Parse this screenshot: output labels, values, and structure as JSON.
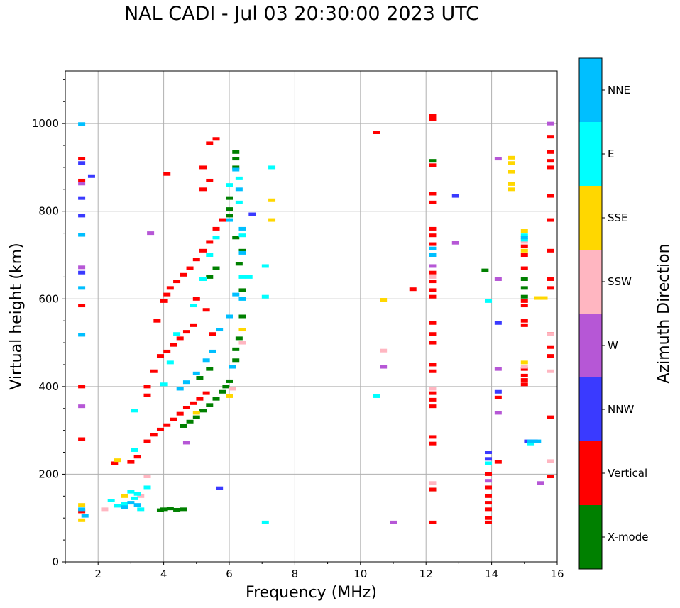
{
  "chart_data": {
    "type": "scatter",
    "title": "NAL CADI - Jul 03 20:30:00 2023 UTC",
    "xlabel": "Frequency (MHz)",
    "ylabel": "Virtual height (km)",
    "xlim": [
      1,
      16
    ],
    "ylim": [
      0,
      1120
    ],
    "xticks": [
      2,
      4,
      6,
      8,
      10,
      12,
      14,
      16
    ],
    "yticks": [
      0,
      200,
      400,
      600,
      800,
      1000
    ],
    "grid": true,
    "colorbar": {
      "label": "Azimuth Direction",
      "categories": [
        {
          "name": "X-mode",
          "color": "#008000"
        },
        {
          "name": "Vertical",
          "color": "#ff0000"
        },
        {
          "name": "NNW",
          "color": "#3a3aff"
        },
        {
          "name": "W",
          "color": "#b657d6"
        },
        {
          "name": "SSW",
          "color": "#ffb6c1"
        },
        {
          "name": "SSE",
          "color": "#ffd700"
        },
        {
          "name": "E",
          "color": "#00ffff"
        },
        {
          "name": "NNE",
          "color": "#00bfff"
        }
      ]
    },
    "series": [
      {
        "name": "X-mode",
        "points": [
          [
            4.0,
            120
          ],
          [
            4.2,
            122
          ],
          [
            4.4,
            119
          ],
          [
            4.6,
            120
          ],
          [
            3.9,
            118
          ],
          [
            4.6,
            310
          ],
          [
            4.8,
            320
          ],
          [
            5.0,
            330
          ],
          [
            5.2,
            345
          ],
          [
            5.4,
            358
          ],
          [
            5.6,
            372
          ],
          [
            5.8,
            388
          ],
          [
            5.9,
            400
          ],
          [
            6.0,
            412
          ],
          [
            6.2,
            460
          ],
          [
            6.2,
            485
          ],
          [
            6.3,
            510
          ],
          [
            6.4,
            560
          ],
          [
            6.4,
            620
          ],
          [
            6.3,
            680
          ],
          [
            6.4,
            710
          ],
          [
            6.2,
            740
          ],
          [
            6.0,
            790
          ],
          [
            6.0,
            805
          ],
          [
            6.0,
            830
          ],
          [
            6.2,
            900
          ],
          [
            6.2,
            920
          ],
          [
            6.2,
            935
          ],
          [
            5.4,
            650
          ],
          [
            5.6,
            670
          ],
          [
            5.1,
            420
          ],
          [
            5.4,
            440
          ],
          [
            12.2,
            165
          ],
          [
            12.2,
            915
          ],
          [
            13.8,
            665
          ],
          [
            15.0,
            605
          ],
          [
            15.0,
            625
          ],
          [
            15.0,
            645
          ]
        ]
      },
      {
        "name": "Vertical",
        "points": [
          [
            1.5,
            920
          ],
          [
            1.5,
            870
          ],
          [
            1.5,
            585
          ],
          [
            1.5,
            400
          ],
          [
            1.5,
            280
          ],
          [
            1.5,
            115
          ],
          [
            2.5,
            225
          ],
          [
            3.0,
            228
          ],
          [
            3.2,
            240
          ],
          [
            3.5,
            275
          ],
          [
            3.7,
            290
          ],
          [
            3.9,
            302
          ],
          [
            4.1,
            312
          ],
          [
            4.3,
            325
          ],
          [
            4.5,
            338
          ],
          [
            4.7,
            352
          ],
          [
            4.9,
            362
          ],
          [
            5.1,
            372
          ],
          [
            5.3,
            385
          ],
          [
            3.7,
            435
          ],
          [
            3.9,
            470
          ],
          [
            4.1,
            480
          ],
          [
            4.3,
            495
          ],
          [
            4.5,
            510
          ],
          [
            4.7,
            525
          ],
          [
            4.9,
            540
          ],
          [
            3.8,
            550
          ],
          [
            4.0,
            595
          ],
          [
            4.1,
            610
          ],
          [
            4.2,
            625
          ],
          [
            4.4,
            640
          ],
          [
            4.6,
            655
          ],
          [
            4.8,
            670
          ],
          [
            5.0,
            690
          ],
          [
            5.2,
            710
          ],
          [
            5.4,
            730
          ],
          [
            5.6,
            760
          ],
          [
            5.8,
            780
          ],
          [
            5.2,
            850
          ],
          [
            5.4,
            870
          ],
          [
            5.6,
            965
          ],
          [
            5.4,
            955
          ],
          [
            5.2,
            900
          ],
          [
            4.1,
            885
          ],
          [
            3.5,
            400
          ],
          [
            3.5,
            380
          ],
          [
            5.0,
            600
          ],
          [
            5.3,
            575
          ],
          [
            5.5,
            520
          ],
          [
            10.5,
            980
          ],
          [
            11.6,
            622
          ],
          [
            12.2,
            90
          ],
          [
            12.2,
            165
          ],
          [
            12.2,
            270
          ],
          [
            12.2,
            285
          ],
          [
            12.2,
            355
          ],
          [
            12.2,
            370
          ],
          [
            12.2,
            385
          ],
          [
            12.2,
            435
          ],
          [
            12.2,
            450
          ],
          [
            12.2,
            500
          ],
          [
            12.2,
            520
          ],
          [
            12.2,
            545
          ],
          [
            12.2,
            605
          ],
          [
            12.2,
            620
          ],
          [
            12.2,
            640
          ],
          [
            12.2,
            660
          ],
          [
            12.2,
            725
          ],
          [
            12.2,
            745
          ],
          [
            12.2,
            760
          ],
          [
            12.2,
            820
          ],
          [
            12.2,
            840
          ],
          [
            12.2,
            905
          ],
          [
            12.2,
            1010
          ],
          [
            12.2,
            1018
          ],
          [
            13.9,
            90
          ],
          [
            13.9,
            100
          ],
          [
            13.9,
            120
          ],
          [
            13.9,
            135
          ],
          [
            13.9,
            150
          ],
          [
            13.9,
            170
          ],
          [
            13.9,
            200
          ],
          [
            14.2,
            228
          ],
          [
            14.2,
            375
          ],
          [
            15.0,
            405
          ],
          [
            15.0,
            415
          ],
          [
            15.0,
            425
          ],
          [
            15.0,
            440
          ],
          [
            15.0,
            540
          ],
          [
            15.0,
            550
          ],
          [
            15.0,
            585
          ],
          [
            15.0,
            595
          ],
          [
            15.0,
            670
          ],
          [
            15.0,
            700
          ],
          [
            15.0,
            720
          ],
          [
            15.8,
            195
          ],
          [
            15.8,
            330
          ],
          [
            15.8,
            470
          ],
          [
            15.8,
            490
          ],
          [
            15.8,
            520
          ],
          [
            15.8,
            625
          ],
          [
            15.8,
            645
          ],
          [
            15.8,
            710
          ],
          [
            15.8,
            780
          ],
          [
            15.8,
            835
          ],
          [
            15.8,
            900
          ],
          [
            15.8,
            915
          ],
          [
            15.8,
            935
          ],
          [
            15.8,
            970
          ]
        ]
      },
      {
        "name": "NNW",
        "points": [
          [
            1.5,
            790
          ],
          [
            1.5,
            830
          ],
          [
            1.5,
            660
          ],
          [
            1.5,
            910
          ],
          [
            1.8,
            880
          ],
          [
            5.7,
            168
          ],
          [
            6.7,
            793
          ],
          [
            12.9,
            835
          ],
          [
            13.9,
            235
          ],
          [
            13.9,
            250
          ],
          [
            14.2,
            545
          ],
          [
            14.2,
            388
          ],
          [
            15.1,
            275
          ],
          [
            15.3,
            275
          ]
        ]
      },
      {
        "name": "W",
        "points": [
          [
            1.5,
            355
          ],
          [
            1.5,
            672
          ],
          [
            1.5,
            863
          ],
          [
            3.6,
            750
          ],
          [
            4.7,
            272
          ],
          [
            10.7,
            445
          ],
          [
            11.0,
            90
          ],
          [
            12.2,
            675
          ],
          [
            12.9,
            728
          ],
          [
            13.9,
            185
          ],
          [
            14.2,
            340
          ],
          [
            14.2,
            440
          ],
          [
            14.2,
            645
          ],
          [
            14.2,
            920
          ],
          [
            15.5,
            180
          ],
          [
            15.8,
            1000
          ]
        ]
      },
      {
        "name": "SSW",
        "points": [
          [
            2.2,
            120
          ],
          [
            3.3,
            150
          ],
          [
            3.5,
            195
          ],
          [
            6.1,
            395
          ],
          [
            6.4,
            500
          ],
          [
            10.7,
            482
          ],
          [
            12.2,
            180
          ],
          [
            12.2,
            395
          ],
          [
            12.2,
            650
          ],
          [
            15.0,
            445
          ],
          [
            15.0,
            730
          ],
          [
            15.8,
            230
          ],
          [
            15.8,
            435
          ],
          [
            15.8,
            520
          ]
        ]
      },
      {
        "name": "SSE",
        "points": [
          [
            1.5,
            95
          ],
          [
            1.5,
            130
          ],
          [
            2.6,
            232
          ],
          [
            2.8,
            150
          ],
          [
            5.0,
            340
          ],
          [
            6.0,
            378
          ],
          [
            6.4,
            530
          ],
          [
            7.3,
            780
          ],
          [
            7.3,
            825
          ],
          [
            10.7,
            598
          ],
          [
            14.6,
            850
          ],
          [
            14.6,
            862
          ],
          [
            14.6,
            890
          ],
          [
            14.6,
            910
          ],
          [
            14.6,
            922
          ],
          [
            15.0,
            455
          ],
          [
            15.0,
            710
          ],
          [
            15.0,
            755
          ],
          [
            15.4,
            602
          ],
          [
            15.6,
            602
          ]
        ]
      },
      {
        "name": "E",
        "points": [
          [
            2.4,
            140
          ],
          [
            2.6,
            128
          ],
          [
            2.8,
            132
          ],
          [
            3.0,
            160
          ],
          [
            3.1,
            145
          ],
          [
            3.2,
            155
          ],
          [
            3.3,
            120
          ],
          [
            3.5,
            170
          ],
          [
            3.1,
            255
          ],
          [
            3.1,
            345
          ],
          [
            4.0,
            405
          ],
          [
            4.2,
            455
          ],
          [
            4.4,
            520
          ],
          [
            4.9,
            585
          ],
          [
            5.2,
            645
          ],
          [
            5.4,
            700
          ],
          [
            5.6,
            740
          ],
          [
            6.4,
            600
          ],
          [
            6.4,
            650
          ],
          [
            6.4,
            745
          ],
          [
            6.3,
            820
          ],
          [
            6.0,
            860
          ],
          [
            6.3,
            875
          ],
          [
            6.6,
            650
          ],
          [
            7.1,
            605
          ],
          [
            7.1,
            675
          ],
          [
            7.3,
            900
          ],
          [
            7.1,
            90
          ],
          [
            10.5,
            378
          ],
          [
            13.9,
            595
          ],
          [
            13.9,
            225
          ],
          [
            15.0,
            735
          ],
          [
            15.0,
            745
          ],
          [
            15.2,
            270
          ]
        ]
      },
      {
        "name": "NNE",
        "points": [
          [
            1.5,
            999
          ],
          [
            1.5,
            746
          ],
          [
            1.5,
            625
          ],
          [
            1.5,
            518
          ],
          [
            1.5,
            120
          ],
          [
            1.6,
            105
          ],
          [
            2.8,
            125
          ],
          [
            3.0,
            135
          ],
          [
            3.2,
            130
          ],
          [
            4.5,
            395
          ],
          [
            4.7,
            410
          ],
          [
            5.0,
            430
          ],
          [
            5.3,
            460
          ],
          [
            5.5,
            480
          ],
          [
            5.7,
            530
          ],
          [
            6.0,
            560
          ],
          [
            6.1,
            445
          ],
          [
            6.2,
            610
          ],
          [
            6.4,
            600
          ],
          [
            6.4,
            705
          ],
          [
            6.4,
            760
          ],
          [
            6.0,
            780
          ],
          [
            6.3,
            850
          ],
          [
            6.2,
            895
          ],
          [
            12.2,
            700
          ],
          [
            12.2,
            715
          ],
          [
            15.0,
            740
          ],
          [
            15.2,
            275
          ],
          [
            15.4,
            275
          ]
        ]
      }
    ]
  }
}
